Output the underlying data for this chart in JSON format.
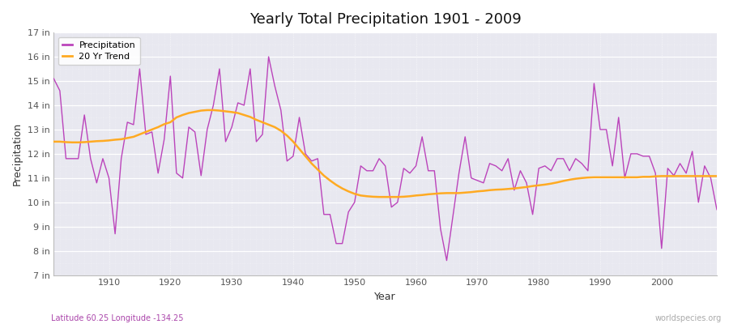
{
  "title": "Yearly Total Precipitation 1901 - 2009",
  "xlabel": "Year",
  "ylabel": "Precipitation",
  "footnote_left": "Latitude 60.25 Longitude -134.25",
  "footnote_right": "worldspecies.org",
  "bg_color": "#ffffff",
  "plot_bg_color": "#e8e8f0",
  "line_color": "#bb44bb",
  "trend_color": "#ffaa22",
  "ylim": [
    7,
    17
  ],
  "ytick_labels": [
    "7 in",
    "8 in",
    "9 in",
    "10 in",
    "11 in",
    "12 in",
    "13 in",
    "14 in",
    "15 in",
    "16 in",
    "17 in"
  ],
  "ytick_values": [
    7,
    8,
    9,
    10,
    11,
    12,
    13,
    14,
    15,
    16,
    17
  ],
  "xlim": [
    1901,
    2009
  ],
  "years": [
    1901,
    1902,
    1903,
    1904,
    1905,
    1906,
    1907,
    1908,
    1909,
    1910,
    1911,
    1912,
    1913,
    1914,
    1915,
    1916,
    1917,
    1918,
    1919,
    1920,
    1921,
    1922,
    1923,
    1924,
    1925,
    1926,
    1927,
    1928,
    1929,
    1930,
    1931,
    1932,
    1933,
    1934,
    1935,
    1936,
    1937,
    1938,
    1939,
    1940,
    1941,
    1942,
    1943,
    1944,
    1945,
    1946,
    1947,
    1948,
    1949,
    1950,
    1951,
    1952,
    1953,
    1954,
    1955,
    1956,
    1957,
    1958,
    1959,
    1960,
    1961,
    1962,
    1963,
    1964,
    1965,
    1966,
    1967,
    1968,
    1969,
    1970,
    1971,
    1972,
    1973,
    1974,
    1975,
    1976,
    1977,
    1978,
    1979,
    1980,
    1981,
    1982,
    1983,
    1984,
    1985,
    1986,
    1987,
    1988,
    1989,
    1990,
    1991,
    1992,
    1993,
    1994,
    1995,
    1996,
    1997,
    1998,
    1999,
    2000,
    2001,
    2002,
    2003,
    2004,
    2005,
    2006,
    2007,
    2008,
    2009
  ],
  "precip": [
    15.1,
    14.6,
    11.8,
    11.8,
    11.8,
    13.6,
    11.8,
    10.8,
    11.8,
    11.0,
    8.7,
    11.8,
    13.3,
    13.2,
    15.5,
    12.8,
    12.9,
    11.2,
    12.6,
    15.2,
    11.2,
    11.0,
    13.1,
    12.9,
    11.1,
    13.0,
    14.0,
    15.5,
    12.5,
    13.1,
    14.1,
    14.0,
    15.5,
    12.5,
    12.8,
    16.0,
    14.8,
    13.8,
    11.7,
    11.9,
    13.5,
    12.0,
    11.7,
    11.8,
    9.5,
    9.5,
    8.3,
    8.3,
    9.6,
    10.0,
    11.5,
    11.3,
    11.3,
    11.8,
    11.5,
    9.8,
    10.0,
    11.4,
    11.2,
    11.5,
    12.7,
    11.3,
    11.3,
    8.9,
    7.6,
    9.4,
    11.2,
    12.7,
    11.0,
    10.9,
    10.8,
    11.6,
    11.5,
    11.3,
    11.8,
    10.5,
    11.3,
    10.8,
    9.5,
    11.4,
    11.5,
    11.3,
    11.8,
    11.8,
    11.3,
    11.8,
    11.6,
    11.3,
    14.9,
    13.0,
    13.0,
    11.5,
    13.5,
    11.0,
    12.0,
    12.0,
    11.9,
    11.9,
    11.2,
    8.1,
    11.4,
    11.1,
    11.6,
    11.2,
    12.1,
    10.0,
    11.5,
    11.0,
    9.7
  ],
  "trend": [
    12.5,
    12.5,
    12.48,
    12.47,
    12.47,
    12.48,
    12.5,
    12.52,
    12.53,
    12.55,
    12.58,
    12.6,
    12.65,
    12.7,
    12.8,
    12.9,
    13.0,
    13.1,
    13.22,
    13.3,
    13.5,
    13.6,
    13.68,
    13.73,
    13.78,
    13.8,
    13.8,
    13.78,
    13.75,
    13.72,
    13.68,
    13.6,
    13.52,
    13.4,
    13.3,
    13.2,
    13.1,
    12.95,
    12.75,
    12.5,
    12.2,
    11.9,
    11.6,
    11.35,
    11.1,
    10.9,
    10.72,
    10.57,
    10.45,
    10.35,
    10.28,
    10.25,
    10.23,
    10.22,
    10.22,
    10.22,
    10.22,
    10.23,
    10.25,
    10.28,
    10.3,
    10.33,
    10.35,
    10.37,
    10.38,
    10.38,
    10.38,
    10.4,
    10.42,
    10.45,
    10.47,
    10.5,
    10.52,
    10.53,
    10.55,
    10.57,
    10.6,
    10.63,
    10.67,
    10.7,
    10.73,
    10.77,
    10.82,
    10.88,
    10.93,
    10.97,
    11.0,
    11.02,
    11.03,
    11.03,
    11.03,
    11.03,
    11.03,
    11.03,
    11.03,
    11.03,
    11.05,
    11.05,
    11.07,
    11.08,
    11.08,
    11.08,
    11.08,
    11.08,
    11.08,
    11.08,
    11.08,
    11.08,
    11.08
  ]
}
